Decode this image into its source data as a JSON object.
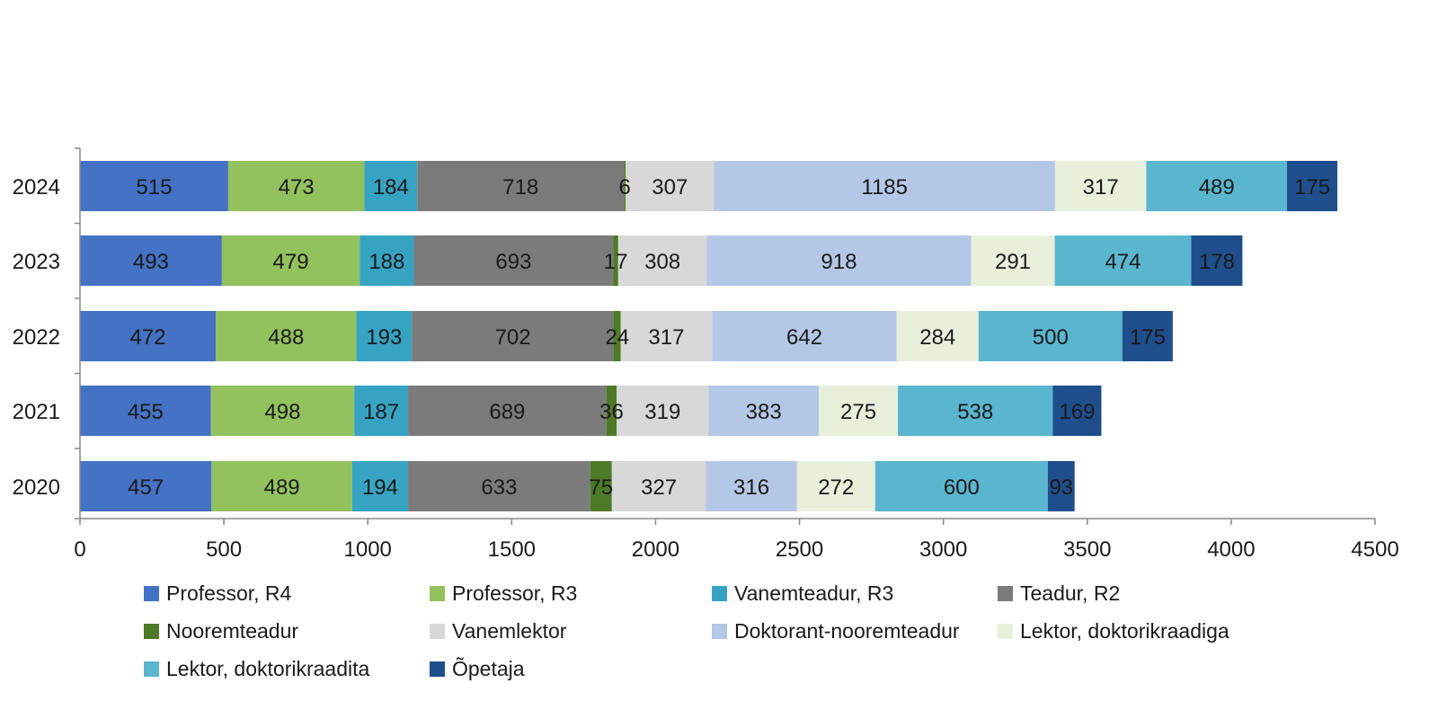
{
  "chart_data": {
    "type": "bar",
    "orientation": "horizontal",
    "stacked": true,
    "title": "",
    "xlabel": "",
    "ylabel": "",
    "xlim": [
      0,
      4500
    ],
    "x_ticks": [
      0,
      500,
      1000,
      1500,
      2000,
      2500,
      3000,
      3500,
      4000,
      4500
    ],
    "categories": [
      "2024",
      "2023",
      "2022",
      "2021",
      "2020"
    ],
    "series": [
      {
        "name": "Professor, R4",
        "color": "#4472c4",
        "label_color": "#1a1a1a",
        "values": [
          515,
          493,
          472,
          455,
          457
        ]
      },
      {
        "name": "Professor, R3",
        "color": "#93c15d",
        "label_color": "#1a1a1a",
        "values": [
          473,
          479,
          488,
          498,
          489
        ]
      },
      {
        "name": "Vanemteadur, R3",
        "color": "#37a3c3",
        "label_color": "#1a1a1a",
        "values": [
          184,
          188,
          193,
          187,
          194
        ]
      },
      {
        "name": "Teadur, R2",
        "color": "#7b7b7b",
        "label_color": "#1a1a1a",
        "values": [
          718,
          693,
          702,
          689,
          633
        ]
      },
      {
        "name": "Nooremteadur",
        "color": "#4e7a27",
        "label_color": "#1a1a1a",
        "values": [
          6,
          17,
          24,
          36,
          75
        ]
      },
      {
        "name": "Vanemlektor",
        "color": "#d8d8d8",
        "label_color": "#1a1a1a",
        "values": [
          307,
          308,
          317,
          319,
          327
        ]
      },
      {
        "name": "Doktorant-nooremteadur",
        "color": "#b5c7e6",
        "label_color": "#1a1a1a",
        "values": [
          1185,
          918,
          642,
          383,
          316
        ]
      },
      {
        "name": "Lektor, doktorikraadiga",
        "color": "#e8efdb",
        "label_color": "#1a1a1a",
        "values": [
          317,
          291,
          284,
          275,
          272
        ]
      },
      {
        "name": "Lektor, doktorikraadita",
        "color": "#5ab5cf",
        "label_color": "#1a1a1a",
        "values": [
          489,
          474,
          500,
          538,
          600
        ]
      },
      {
        "name": "Õpetaja",
        "color": "#1f4e8c",
        "label_color": "#1a1a1a",
        "values": [
          175,
          178,
          175,
          169,
          93
        ]
      }
    ],
    "legend_position": "bottom",
    "grid": false
  }
}
